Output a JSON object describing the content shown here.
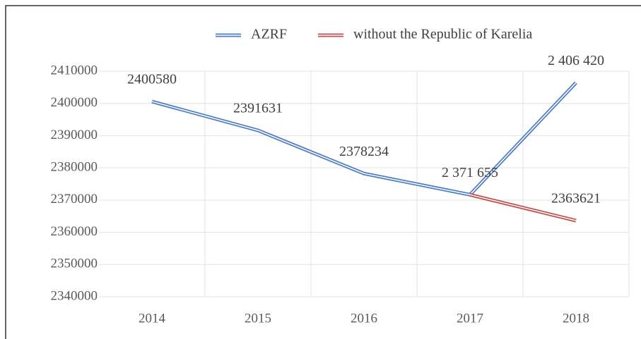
{
  "chart_data": {
    "type": "line",
    "categories": [
      "2014",
      "2015",
      "2016",
      "2017",
      "2018"
    ],
    "series": [
      {
        "name": "AZRF",
        "color": "#4f7ec4",
        "values": [
          2400580,
          2391631,
          2378234,
          2371655,
          2406420
        ],
        "value_labels": [
          "2400580",
          "2391631",
          "2378234",
          "2 371 655",
          "2 406 420"
        ]
      },
      {
        "name": "without the Republic of Karelia",
        "color": "#c0504d",
        "values": [
          null,
          null,
          null,
          2371655,
          2363621
        ],
        "value_labels": [
          null,
          null,
          null,
          null,
          "2363621"
        ]
      }
    ],
    "ylim": [
      2340000,
      2410000
    ],
    "yticks": [
      2340000,
      2350000,
      2360000,
      2370000,
      2380000,
      2390000,
      2400000,
      2410000
    ],
    "grid": true,
    "legend": "top"
  }
}
